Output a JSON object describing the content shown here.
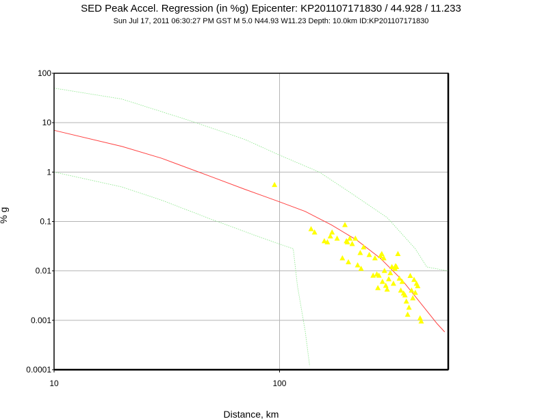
{
  "chart_data": {
    "type": "scatter",
    "title": "SED Peak Accel. Regression (in %g) Epicenter: KP201107171830 / 44.928 / 11.233",
    "subtitle": "Sun Jul 17, 2011 06:30:27 PM GST    M 5.0    N44.93 W11.23    Depth: 10.0km    ID:KP201107171830",
    "xlabel": "Distance, km",
    "ylabel": "% g",
    "x_scale": "log",
    "y_scale": "log",
    "xlim": [
      10,
      560
    ],
    "ylim": [
      0.0001,
      100
    ],
    "x_ticks": [
      "10",
      "100"
    ],
    "y_ticks": [
      "0.0001",
      "0.001",
      "0.01",
      "0.1",
      "1",
      "10",
      "100"
    ],
    "grid": true,
    "colors": {
      "points": "#ffff00",
      "regression": "#ff4040",
      "bounds": "#90e890",
      "grid": "#b4b4b4"
    },
    "series": [
      {
        "type": "line",
        "x": [
          10,
          20,
          30,
          50,
          70,
          100,
          130,
          170,
          220,
          280,
          350,
          420,
          500,
          540
        ],
        "y": [
          7,
          3.3,
          1.9,
          0.8,
          0.45,
          0.25,
          0.16,
          0.085,
          0.042,
          0.018,
          0.0065,
          0.0023,
          0.00085,
          0.00058
        ]
      },
      {
        "type": "line",
        "x": [
          10,
          20,
          40,
          70,
          100,
          150,
          200,
          300,
          400,
          450,
          560
        ],
        "y": [
          50,
          30,
          11,
          4.6,
          2.2,
          1,
          0.42,
          0.12,
          0.028,
          0.012,
          0.01
        ]
      },
      {
        "type": "line",
        "x": [
          10,
          20,
          30,
          50,
          80,
          100,
          115,
          120,
          130,
          136
        ],
        "y": [
          1,
          0.5,
          0.27,
          0.11,
          0.05,
          0.035,
          0.028,
          0.005,
          0.0006,
          0.00012
        ]
      },
      {
        "type": "scatter",
        "x": [
          95,
          138,
          143,
          158,
          163,
          168,
          171,
          180,
          190,
          195,
          198,
          200,
          202,
          205,
          210,
          217,
          222,
          228,
          230,
          236,
          250,
          260,
          265,
          270,
          273,
          276,
          280,
          284,
          286,
          290,
          292,
          296,
          300,
          305,
          310,
          315,
          320,
          325,
          327,
          330,
          335,
          340,
          345,
          350,
          355,
          360,
          365,
          370,
          375,
          380,
          385,
          390,
          395,
          400,
          405,
          410,
          420,
          425
        ],
        "y": [
          0.55,
          0.07,
          0.06,
          0.04,
          0.038,
          0.05,
          0.06,
          0.045,
          0.018,
          0.085,
          0.04,
          0.038,
          0.015,
          0.045,
          0.035,
          0.045,
          0.013,
          0.023,
          0.011,
          0.03,
          0.021,
          0.008,
          0.018,
          0.0085,
          0.0045,
          0.008,
          0.02,
          0.022,
          0.006,
          0.018,
          0.01,
          0.005,
          0.0042,
          0.0068,
          0.009,
          0.012,
          0.0055,
          0.011,
          0.0125,
          0.012,
          0.022,
          0.007,
          0.004,
          0.006,
          0.0035,
          0.0032,
          0.0024,
          0.0013,
          0.0018,
          0.0079,
          0.004,
          0.0028,
          0.0066,
          0.0036,
          0.0055,
          0.0049,
          0.0011,
          0.00095
        ]
      }
    ]
  }
}
